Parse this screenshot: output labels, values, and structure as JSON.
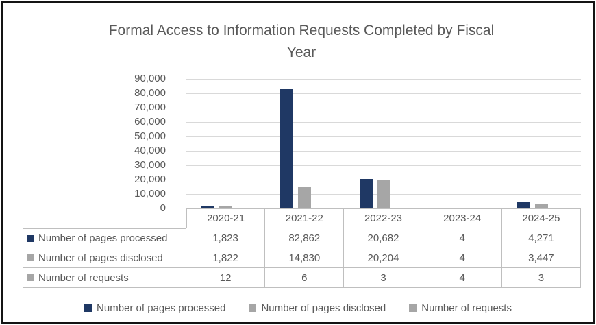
{
  "title": {
    "lines": [
      "Formal Access to Information Requests Completed by Fiscal",
      "Year"
    ]
  },
  "chart_data": {
    "type": "bar",
    "title": "Formal Access to Information Requests Completed by Fiscal Year",
    "categories": [
      "2020-21",
      "2021-22",
      "2022-23",
      "2023-24",
      "2024-25"
    ],
    "series": [
      {
        "name": "Number of pages processed",
        "color": "#1f3864",
        "values": [
          1823,
          82862,
          20682,
          4,
          4271
        ],
        "value_labels": [
          "1,823",
          "82,862",
          "20,682",
          "4",
          "4,271"
        ]
      },
      {
        "name": "Number of pages disclosed",
        "color": "#a6a6a6",
        "values": [
          1822,
          14830,
          20204,
          4,
          3447
        ],
        "value_labels": [
          "1,822",
          "14,830",
          "20,204",
          "4",
          "3,447"
        ]
      },
      {
        "name": "Number of requests",
        "color": "#a6a6a6",
        "values": [
          12,
          6,
          3,
          4,
          3
        ],
        "value_labels": [
          "12",
          "6",
          "3",
          "4",
          "3"
        ]
      }
    ],
    "y_axis": {
      "min": 0,
      "max": 90000,
      "tick_step": 10000,
      "tick_labels": [
        "90,000",
        "80,000",
        "70,000",
        "60,000",
        "50,000",
        "40,000",
        "30,000",
        "20,000",
        "10,000",
        "0"
      ]
    },
    "grid": true,
    "legend_position": "bottom",
    "data_table_shown": true
  },
  "colors": {
    "text": "#595959",
    "gridline": "#d9d9d9",
    "table_border": "#bfbfbf",
    "frame_border": "#141414",
    "background": "#ffffff"
  }
}
